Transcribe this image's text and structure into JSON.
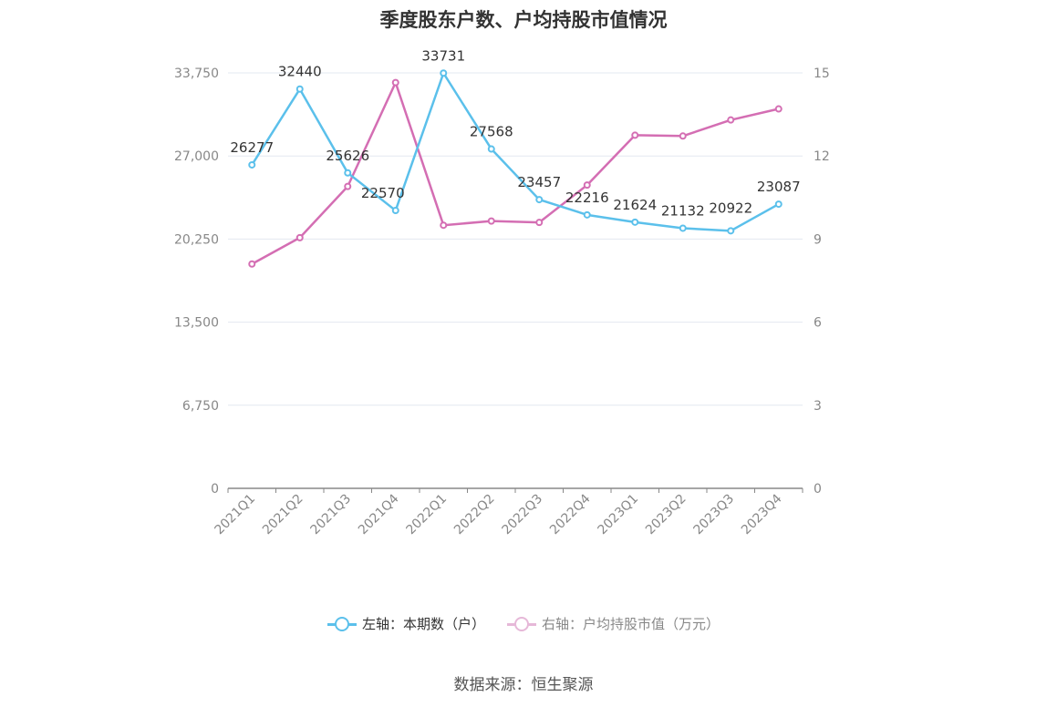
{
  "chart_data": {
    "type": "line",
    "title": "季度股东户数、户均持股市值情况",
    "categories": [
      "2021Q1",
      "2021Q2",
      "2021Q3",
      "2021Q4",
      "2022Q1",
      "2022Q2",
      "2022Q3",
      "2022Q4",
      "2023Q1",
      "2023Q2",
      "2023Q3",
      "2023Q4"
    ],
    "left_axis": {
      "ticks": [
        "0",
        "6,750",
        "13,500",
        "20,250",
        "27,000",
        "33,750"
      ],
      "ylim": [
        0,
        33750
      ]
    },
    "right_axis": {
      "ticks": [
        "0",
        "3",
        "6",
        "9",
        "12",
        "15"
      ],
      "ylim": [
        0,
        15
      ]
    },
    "grid": true,
    "legend_position": "bottom",
    "series": [
      {
        "name": "左轴：本期数（户）",
        "axis": "left",
        "color": "#5bc0eb",
        "labels_shown": true,
        "values": [
          26277,
          32440,
          25626,
          22570,
          33731,
          27568,
          23457,
          22216,
          21624,
          21132,
          20922,
          23087
        ]
      },
      {
        "name": "右轴：户均持股市值（万元）",
        "axis": "right",
        "color": "#d46eb3",
        "labels_shown": false,
        "values": [
          8.1,
          9.05,
          10.9,
          14.65,
          9.5,
          9.65,
          9.6,
          10.95,
          12.75,
          12.72,
          13.3,
          13.7
        ]
      }
    ]
  },
  "source": "数据来源：恒生聚源"
}
